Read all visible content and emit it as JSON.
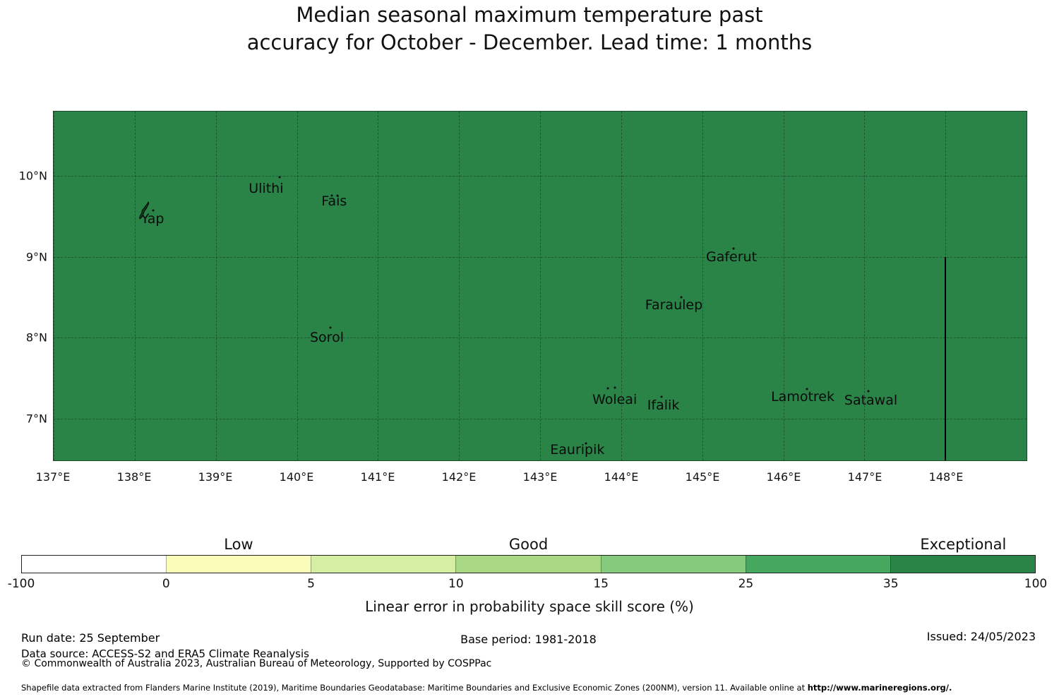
{
  "title": {
    "line1": "Median seasonal maximum temperature past",
    "line2": "accuracy for October - December. Lead time: 1 months"
  },
  "map": {
    "fill_color": "#2a8347",
    "extent": {
      "lon_min": 137,
      "lon_max": 149,
      "lat_min": 6.48,
      "lat_max": 10.8
    },
    "x_ticks": [
      {
        "label": "137°E",
        "lon": 137
      },
      {
        "label": "138°E",
        "lon": 138
      },
      {
        "label": "139°E",
        "lon": 139
      },
      {
        "label": "140°E",
        "lon": 140
      },
      {
        "label": "141°E",
        "lon": 141
      },
      {
        "label": "142°E",
        "lon": 142
      },
      {
        "label": "143°E",
        "lon": 143
      },
      {
        "label": "144°E",
        "lon": 144
      },
      {
        "label": "145°E",
        "lon": 145
      },
      {
        "label": "146°E",
        "lon": 146
      },
      {
        "label": "147°E",
        "lon": 147
      },
      {
        "label": "148°E",
        "lon": 148
      }
    ],
    "y_ticks": [
      {
        "label": "10°N",
        "lat": 10
      },
      {
        "label": "9°N",
        "lat": 9
      },
      {
        "label": "8°N",
        "lat": 8
      },
      {
        "label": "7°N",
        "lat": 7
      }
    ],
    "islands": [
      {
        "name": "Yap",
        "lon": 138.22,
        "lat": 9.47,
        "shape": "yap",
        "shape_lon": 138.12,
        "shape_lat": 9.55,
        "dots": [
          [
            138.23,
            9.58
          ]
        ]
      },
      {
        "name": "Ulithi",
        "lon": 139.62,
        "lat": 9.85,
        "dots": [
          [
            139.79,
            9.99
          ]
        ]
      },
      {
        "name": "Fais",
        "lon": 140.46,
        "lat": 9.69,
        "dots": [
          [
            140.43,
            9.76
          ],
          [
            140.5,
            9.76
          ]
        ]
      },
      {
        "name": "Sorol",
        "lon": 140.37,
        "lat": 8.0,
        "dots": [
          [
            140.41,
            8.12
          ]
        ]
      },
      {
        "name": "Gaferut",
        "lon": 145.36,
        "lat": 9.0,
        "dots": [
          [
            145.39,
            9.1
          ]
        ]
      },
      {
        "name": "Faraulep",
        "lon": 144.65,
        "lat": 8.4,
        "dots": [
          [
            144.74,
            8.5
          ]
        ]
      },
      {
        "name": "Woleai",
        "lon": 143.92,
        "lat": 7.23,
        "dots": [
          [
            143.84,
            7.37
          ],
          [
            143.92,
            7.38
          ]
        ]
      },
      {
        "name": "Ifalik",
        "lon": 144.52,
        "lat": 7.16,
        "dots": [
          [
            144.5,
            7.27
          ]
        ]
      },
      {
        "name": "Lamotrek",
        "lon": 146.24,
        "lat": 7.27,
        "dots": [
          [
            146.29,
            7.36
          ]
        ]
      },
      {
        "name": "Satawal",
        "lon": 147.08,
        "lat": 7.22,
        "dots": [
          [
            147.05,
            7.34
          ]
        ]
      },
      {
        "name": "Eauripik",
        "lon": 143.46,
        "lat": 6.61,
        "dots": [
          [
            143.57,
            6.69
          ]
        ]
      }
    ],
    "eez_boundary": {
      "lon": 148,
      "lat_from": 9.0,
      "lat_to": 6.48,
      "color": "#000000"
    }
  },
  "colorbar": {
    "title": "Linear error in probability space skill score (%)",
    "tick_labels": [
      "-100",
      "0",
      "5",
      "10",
      "15",
      "25",
      "35",
      "100"
    ],
    "segment_colors": [
      "#ffffff",
      "#fafcba",
      "#d6eda4",
      "#a9d884",
      "#85ca7d",
      "#46a85f",
      "#2a8347"
    ],
    "category_labels": [
      {
        "text": "Low",
        "segment_index": 1
      },
      {
        "text": "Good",
        "segment_index": 3
      },
      {
        "text": "Exceptional",
        "segment_index": 6
      }
    ]
  },
  "footer": {
    "run_date": "Run date: 25 September",
    "base_period": "Base period: 1981-2018",
    "issued": "Issued: 24/05/2023",
    "data_source": "Data source: ACCESS-S2 and ERA5 Climate Reanalysis",
    "copyright": "© Commonwealth of Australia 2023, Australian Bureau of Meteorology, Supported by COSPPac",
    "shapefile_note": "Shapefile data extracted from Flanders Marine Institute (2019), Maritime Boundaries Geodatabase: Maritime Boundaries and Exclusive Economic Zones (200NM), version 11. Available online at ",
    "shapefile_url": "http://www.marineregions.org/."
  },
  "chart_data": {
    "type": "heatmap",
    "description": "Choropleth map of forecast skill; entire shown EEZ region falls in the 35-100 (Exceptional) bin",
    "value_bins": [
      -100,
      0,
      5,
      10,
      15,
      25,
      35,
      100
    ],
    "bin_colors": [
      "#ffffff",
      "#fafcba",
      "#d6eda4",
      "#a9d884",
      "#85ca7d",
      "#46a85f",
      "#2a8347"
    ],
    "region_value_bin": "35-100",
    "lon_range": [
      137,
      149
    ],
    "lat_range": [
      6.48,
      10.8
    ]
  }
}
